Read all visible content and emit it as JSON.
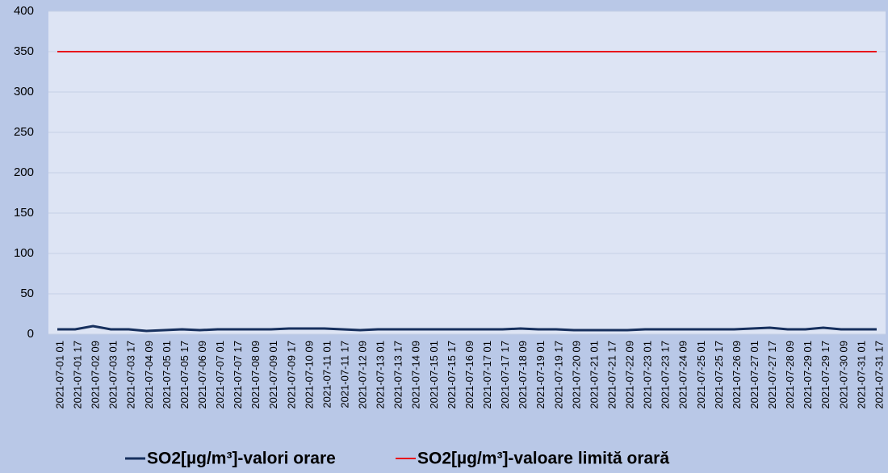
{
  "chart_data": {
    "type": "line",
    "categories": [
      "2021-07-01 01",
      "2021-07-01 17",
      "2021-07-02 09",
      "2021-07-03 01",
      "2021-07-03 17",
      "2021-07-04 09",
      "2021-07-05 01",
      "2021-07-05 17",
      "2021-07-06 09",
      "2021-07-07 01",
      "2021-07-07 17",
      "2021-07-08 09",
      "2021-07-09 01",
      "2021-07-09 17",
      "2021-07-10 09",
      "2021-07-11 01",
      "2021-07-11 17",
      "2021-07-12 09",
      "2021-07-13 01",
      "2021-07-13 17",
      "2021-07-14 09",
      "2021-07-15 01",
      "2021-07-15 17",
      "2021-07-16 09",
      "2021-07-17 01",
      "2021-07-17 17",
      "2021-07-18 09",
      "2021-07-19 01",
      "2021-07-19 17",
      "2021-07-20 09",
      "2021-07-21 01",
      "2021-07-21 17",
      "2021-07-22 09",
      "2021-07-23 01",
      "2021-07-23 17",
      "2021-07-24 09",
      "2021-07-25 01",
      "2021-07-25 17",
      "2021-07-26 09",
      "2021-07-27 01",
      "2021-07-27 17",
      "2021-07-28 09",
      "2021-07-29 01",
      "2021-07-29 17",
      "2021-07-30 09",
      "2021-07-31 01",
      "2021-07-31 17"
    ],
    "series": [
      {
        "name": "SO2[µg/m³]-valori orare",
        "color": "#17305e",
        "values": [
          6,
          6,
          10,
          6,
          6,
          4,
          5,
          6,
          5,
          6,
          6,
          6,
          6,
          7,
          7,
          7,
          6,
          5,
          6,
          6,
          6,
          6,
          6,
          6,
          6,
          6,
          7,
          6,
          6,
          5,
          5,
          5,
          5,
          6,
          6,
          6,
          6,
          6,
          6,
          7,
          8,
          6,
          6,
          8,
          6,
          6,
          6
        ]
      },
      {
        "name": "SO2[µg/m³]-valoare limită orară",
        "color": "#e8141b",
        "values": [
          350,
          350,
          350,
          350,
          350,
          350,
          350,
          350,
          350,
          350,
          350,
          350,
          350,
          350,
          350,
          350,
          350,
          350,
          350,
          350,
          350,
          350,
          350,
          350,
          350,
          350,
          350,
          350,
          350,
          350,
          350,
          350,
          350,
          350,
          350,
          350,
          350,
          350,
          350,
          350,
          350,
          350,
          350,
          350,
          350,
          350,
          350
        ]
      }
    ],
    "ylim": [
      0,
      400
    ],
    "yticks": [
      0,
      50,
      100,
      150,
      200,
      250,
      300,
      350,
      400
    ],
    "grid": true
  }
}
